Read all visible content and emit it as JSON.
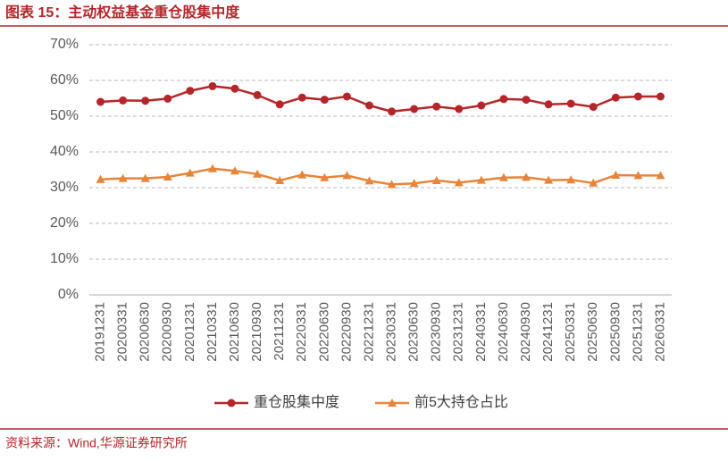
{
  "chart_data": {
    "type": "line",
    "title": "图表 15：主动权益基金重仓股集中度",
    "source": "资料来源：Wind,华源证券研究所",
    "categories": [
      "20191231",
      "20200331",
      "20200630",
      "20200930",
      "20201231",
      "20210331",
      "20210630",
      "20210930",
      "20211231",
      "20220331",
      "20220630",
      "20220930",
      "20221231",
      "20230331",
      "20230630",
      "20230930",
      "20231231",
      "20240331",
      "20240630",
      "20240930",
      "20241231",
      "20250331",
      "20250630",
      "20250930",
      "20251231",
      "20260331"
    ],
    "series": [
      {
        "name": "重仓股集中度",
        "color": "#b5262b",
        "marker": "circle",
        "values": [
          54.0,
          54.4,
          54.3,
          54.9,
          57.1,
          58.4,
          57.7,
          55.9,
          53.3,
          55.2,
          54.6,
          55.5,
          53.0,
          51.3,
          52.0,
          52.7,
          52.0,
          53.0,
          54.8,
          54.6,
          53.3,
          53.5,
          52.6,
          55.2,
          55.5,
          55.5
        ]
      },
      {
        "name": "前5大持仓占比",
        "color": "#e8843a",
        "marker": "triangle",
        "values": [
          32.3,
          32.6,
          32.6,
          33.0,
          34.1,
          35.3,
          34.7,
          33.8,
          32.0,
          33.6,
          32.8,
          33.4,
          31.9,
          30.9,
          31.2,
          32.0,
          31.4,
          32.1,
          32.8,
          32.9,
          32.1,
          32.2,
          31.3,
          33.5,
          33.4,
          33.4
        ]
      }
    ],
    "ylim": [
      0,
      70
    ],
    "yticks": [
      {
        "value": 0,
        "label": "0%"
      },
      {
        "value": 10,
        "label": "10%"
      },
      {
        "value": 20,
        "label": "20%"
      },
      {
        "value": 30,
        "label": "30%"
      },
      {
        "value": 40,
        "label": "40%"
      },
      {
        "value": 50,
        "label": "50%"
      },
      {
        "value": 60,
        "label": "60%"
      },
      {
        "value": 70,
        "label": "70%"
      }
    ],
    "grid": true,
    "legend": "bottom"
  }
}
